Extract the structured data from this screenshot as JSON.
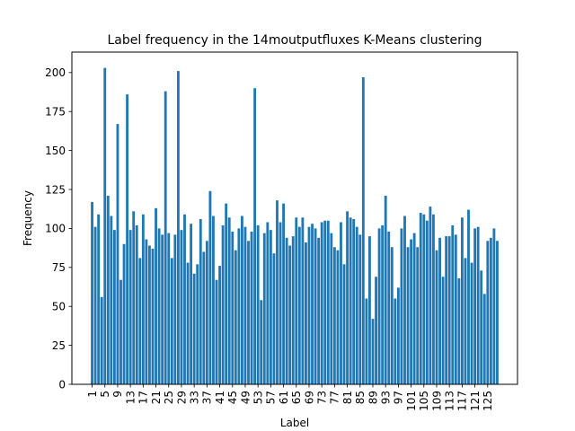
{
  "chart_data": {
    "type": "bar",
    "title": "Label frequency in the 14moutputfluxes K-Means clustering",
    "xlabel": "Label",
    "ylabel": "Frequency",
    "x": [
      1,
      2,
      3,
      4,
      5,
      6,
      7,
      8,
      9,
      10,
      11,
      12,
      13,
      14,
      15,
      16,
      17,
      18,
      19,
      20,
      21,
      22,
      23,
      24,
      25,
      26,
      27,
      28,
      29,
      30,
      31,
      32,
      33,
      34,
      35,
      36,
      37,
      38,
      39,
      40,
      41,
      42,
      43,
      44,
      45,
      46,
      47,
      48,
      49,
      50,
      51,
      52,
      53,
      54,
      55,
      56,
      57,
      58,
      59,
      60,
      61,
      62,
      63,
      64,
      65,
      66,
      67,
      68,
      69,
      70,
      71,
      72,
      73,
      74,
      75,
      76,
      77,
      78,
      79,
      80,
      81,
      82,
      83,
      84,
      85,
      86,
      87,
      88,
      89,
      90,
      91,
      92,
      93,
      94,
      95,
      96,
      97,
      98,
      99,
      100,
      101,
      102,
      103,
      104,
      105,
      106,
      107,
      108,
      109,
      110,
      111,
      112,
      113,
      114,
      115,
      116,
      117,
      118,
      119,
      120,
      121,
      122,
      123,
      124,
      125,
      126,
      127,
      128
    ],
    "values": [
      117,
      101,
      109,
      56,
      203,
      121,
      108,
      99,
      167,
      67,
      90,
      186,
      99,
      111,
      102,
      81,
      109,
      93,
      89,
      87,
      113,
      100,
      96,
      188,
      97,
      81,
      96,
      201,
      99,
      109,
      78,
      103,
      71,
      77,
      106,
      85,
      92,
      124,
      108,
      67,
      76,
      102,
      116,
      107,
      98,
      86,
      100,
      108,
      101,
      92,
      98,
      190,
      102,
      54,
      97,
      104,
      99,
      84,
      118,
      104,
      116,
      94,
      89,
      95,
      107,
      101,
      107,
      91,
      101,
      103,
      100,
      94,
      104,
      105,
      105,
      97,
      88,
      86,
      104,
      77,
      111,
      107,
      106,
      101,
      96,
      197,
      55,
      95,
      42,
      69,
      100,
      102,
      121,
      98,
      88,
      55,
      62,
      100,
      108,
      88,
      93,
      97,
      88,
      110,
      109,
      105,
      114,
      109,
      86,
      94,
      69,
      95,
      95,
      102,
      96,
      68,
      107,
      81,
      112,
      78,
      100,
      101,
      73,
      58,
      92,
      94,
      100,
      92
    ],
    "xticks": [
      "1",
      "5",
      "9",
      "13",
      "17",
      "21",
      "25",
      "29",
      "33",
      "37",
      "41",
      "45",
      "49",
      "53",
      "57",
      "61",
      "65",
      "69",
      "73",
      "77",
      "81",
      "85",
      "89",
      "93",
      "97",
      "101",
      "105",
      "109",
      "113",
      "117",
      "121",
      "125"
    ],
    "xtick_values": [
      1,
      5,
      9,
      13,
      17,
      21,
      25,
      29,
      33,
      37,
      41,
      45,
      49,
      53,
      57,
      61,
      65,
      69,
      73,
      77,
      81,
      85,
      89,
      93,
      97,
      101,
      105,
      109,
      113,
      117,
      121,
      125
    ],
    "yticks": [
      "0",
      "25",
      "50",
      "75",
      "100",
      "125",
      "150",
      "175",
      "200"
    ],
    "ytick_values": [
      0,
      25,
      50,
      75,
      100,
      125,
      150,
      175,
      200
    ],
    "xlim": [
      -5.35,
      134.35
    ],
    "ylim": [
      0,
      213.15
    ],
    "grid": false,
    "bar_color": "#1f77b4"
  }
}
